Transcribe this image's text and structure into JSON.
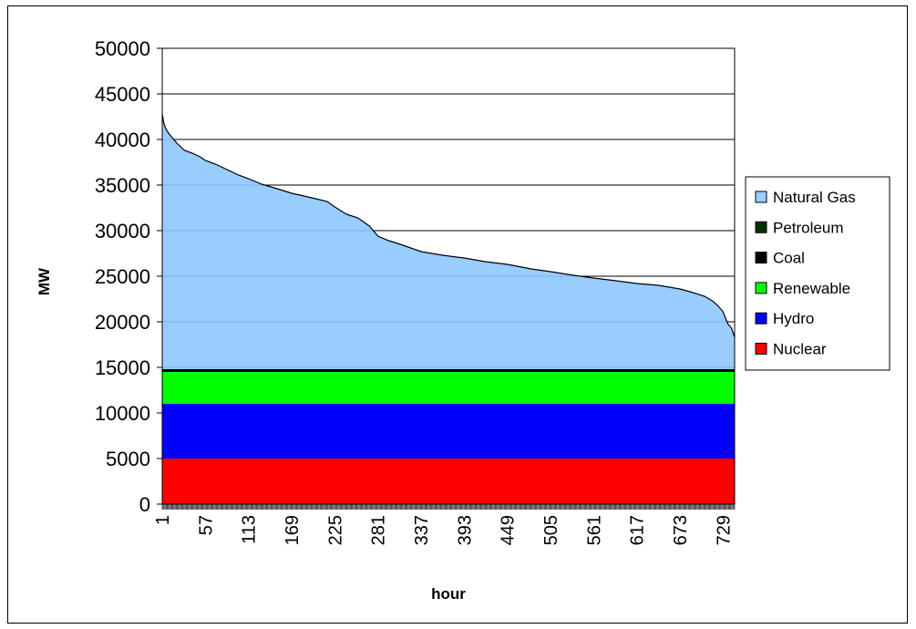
{
  "chart_data": {
    "type": "area",
    "title": "",
    "xlabel": "hour",
    "ylabel": "MW",
    "ylim": [
      0,
      50000
    ],
    "yticks": [
      "0",
      "5000",
      "10000",
      "15000",
      "20000",
      "25000",
      "30000",
      "35000",
      "40000",
      "45000",
      "50000"
    ],
    "xlim": [
      1,
      744
    ],
    "xticks": [
      "1",
      "57",
      "113",
      "169",
      "225",
      "281",
      "337",
      "393",
      "449",
      "505",
      "561",
      "617",
      "673",
      "729"
    ],
    "grid": "horizontal",
    "legend_position": "right",
    "stacked": true,
    "series": [
      {
        "name": "Nuclear",
        "color": "#ff0000",
        "values": [
          5000
        ]
      },
      {
        "name": "Hydro",
        "color": "#0000ff",
        "values": [
          6000
        ]
      },
      {
        "name": "Renewable",
        "color": "#00ff00",
        "values": [
          3500
        ]
      },
      {
        "name": "Coal",
        "color": "#000000",
        "values": [
          300
        ]
      },
      {
        "name": "Petroleum",
        "color": "#003300",
        "values": [
          0
        ]
      },
      {
        "name": "Natural Gas",
        "color": "#99ccff",
        "x": [
          1,
          3,
          6,
          10,
          15,
          20,
          30,
          40,
          50,
          57,
          70,
          85,
          100,
          113,
          130,
          150,
          169,
          185,
          200,
          215,
          225,
          240,
          255,
          270,
          281,
          295,
          310,
          337,
          365,
          393,
          420,
          449,
          480,
          505,
          535,
          561,
          590,
          617,
          645,
          673,
          690,
          705,
          715,
          722,
          729,
          735,
          740,
          744
        ],
        "values": [
          28000,
          27000,
          26300,
          25800,
          25300,
          24800,
          24000,
          23700,
          23300,
          22900,
          22500,
          21900,
          21300,
          20900,
          20300,
          19800,
          19300,
          19000,
          18700,
          18400,
          17800,
          17000,
          16600,
          15700,
          14600,
          14100,
          13700,
          12900,
          12500,
          12200,
          11800,
          11500,
          11000,
          10700,
          10300,
          10000,
          9700,
          9400,
          9200,
          8800,
          8400,
          8000,
          7500,
          7000,
          6300,
          5000,
          4500,
          3500
        ]
      }
    ],
    "legend": [
      "Natural Gas",
      "Petroleum",
      "Coal",
      "Renewable",
      "Hydro",
      "Nuclear"
    ]
  }
}
